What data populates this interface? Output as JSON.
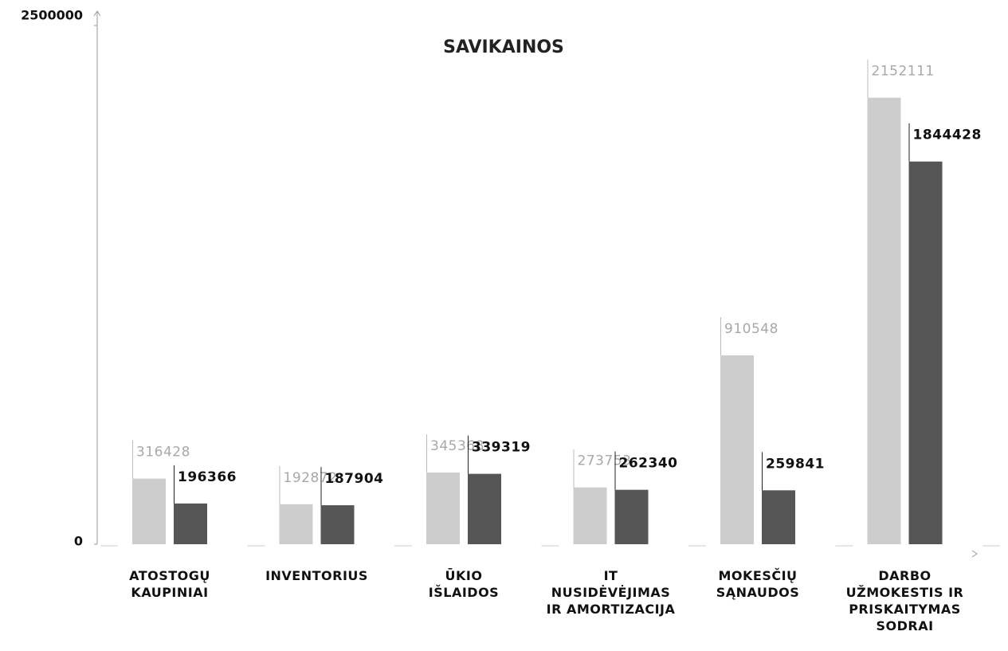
{
  "chart_data": {
    "type": "bar",
    "title": "SAVIKAINOS",
    "categories": [
      "ATOSTOGŲ KAUPINIAI",
      "INVENTORIUS",
      "ŪKIO IŠLAIDOS",
      "IT NUSIDĖVĖJIMAS IR AMORTIZACIJA",
      "MOKESČIŲ SĄNAUDOS",
      "DARBO UŽMOKESTIS IR PRISKAITYMAS SODRAI"
    ],
    "series": [
      {
        "color": "#cdcdcd",
        "values": [
          316428,
          192872,
          345368,
          273753,
          910548,
          2152111
        ]
      },
      {
        "color": "#565656",
        "values": [
          196366,
          187904,
          339319,
          262340,
          259841,
          1844428
        ]
      }
    ],
    "ylim": [
      0,
      2500000
    ],
    "yticks": [
      0,
      2500000
    ],
    "grid": false
  }
}
